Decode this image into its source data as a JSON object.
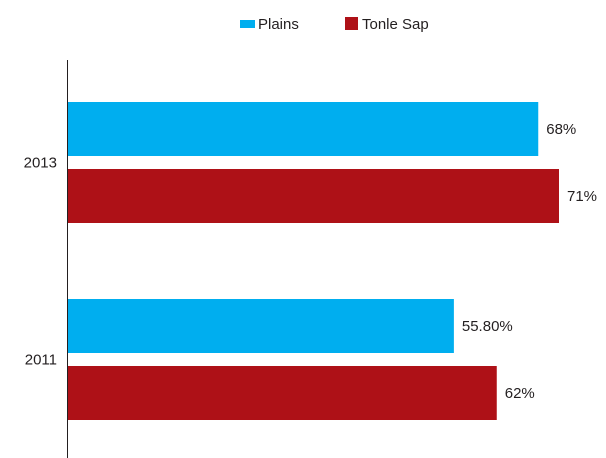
{
  "chart_data": {
    "type": "bar",
    "orientation": "horizontal",
    "categories": [
      "2013",
      "2011"
    ],
    "series": [
      {
        "name": "Plains",
        "color": "#00aeef",
        "values": [
          68,
          55.8
        ],
        "labels": [
          "68%",
          "55.80%"
        ]
      },
      {
        "name": "Tonle Sap",
        "color": "#ae1117",
        "values": [
          71,
          62
        ],
        "labels": [
          "71%",
          "62%"
        ]
      }
    ],
    "xlim": [
      0,
      75
    ],
    "grid": false,
    "legend": "top-center"
  }
}
